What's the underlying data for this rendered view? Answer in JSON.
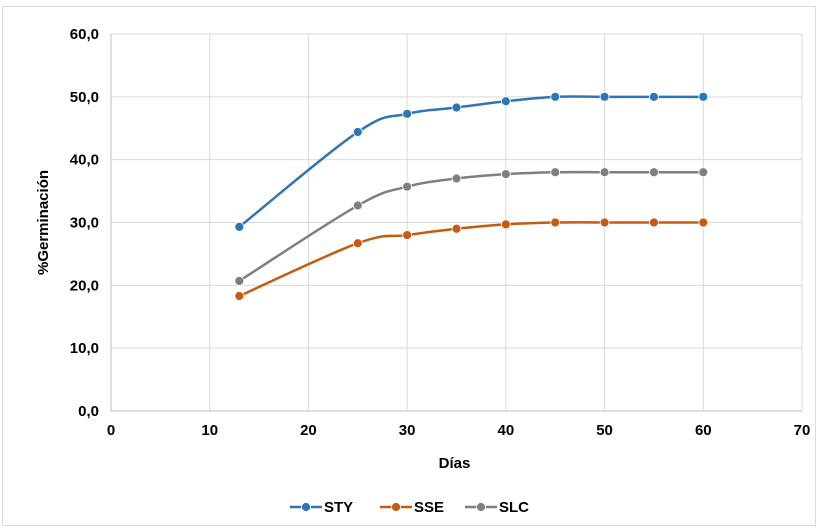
{
  "chart_data": {
    "type": "line",
    "title": "",
    "xlabel": "Días",
    "ylabel": "%Germinación",
    "xlim": [
      0,
      70
    ],
    "ylim": [
      0,
      60
    ],
    "x_ticks": [
      0,
      10,
      20,
      30,
      40,
      50,
      60,
      70
    ],
    "y_ticks": [
      0,
      10,
      20,
      30,
      40,
      50,
      60
    ],
    "x_tick_labels": [
      "0",
      "10",
      "20",
      "30",
      "40",
      "50",
      "60",
      "70"
    ],
    "y_tick_labels": [
      "0,0",
      "10,0",
      "20,0",
      "30,0",
      "40,0",
      "50,0",
      "60,0"
    ],
    "grid": true,
    "smooth": true,
    "legend_position": "bottom",
    "x": [
      13,
      25,
      30,
      35,
      40,
      45,
      50,
      55,
      60
    ],
    "series": [
      {
        "name": "STY",
        "color": "#2e75b6",
        "values": [
          29.3,
          44.4,
          47.3,
          48.3,
          49.3,
          50.0,
          50.0,
          50.0,
          50.0
        ]
      },
      {
        "name": "SSE",
        "color": "#c55a11",
        "values": [
          18.3,
          26.7,
          28.0,
          29.0,
          29.7,
          30.0,
          30.0,
          30.0,
          30.0
        ]
      },
      {
        "name": "SLC",
        "color": "#7f7f7f",
        "values": [
          20.7,
          32.7,
          35.7,
          37.0,
          37.7,
          38.0,
          38.0,
          38.0,
          38.0
        ]
      }
    ]
  }
}
